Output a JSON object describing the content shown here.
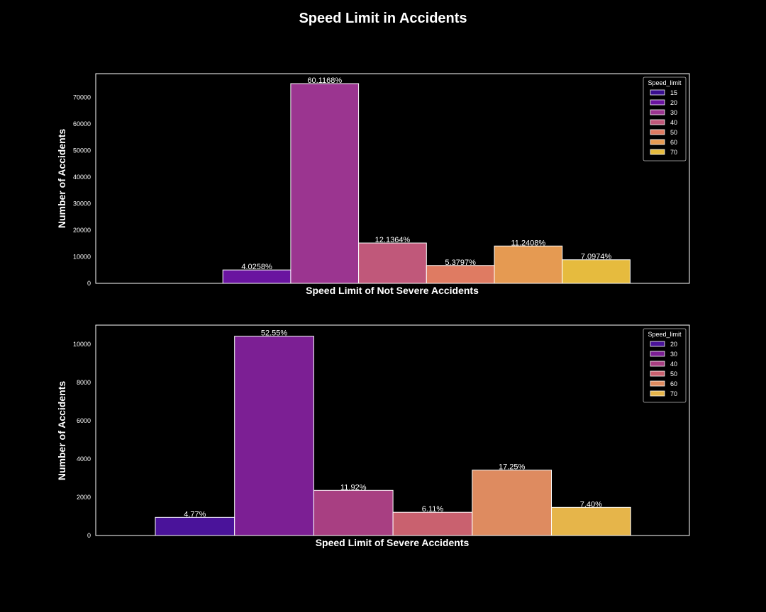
{
  "title": "Speed Limit in Accidents",
  "chart_data": [
    {
      "type": "bar",
      "title": "",
      "xlabel": "Speed Limit of Not Severe Accidents",
      "ylabel": "Number of Accidents",
      "ylim": [
        0,
        79000
      ],
      "yticks": [
        0,
        10000,
        20000,
        30000,
        40000,
        50000,
        60000,
        70000
      ],
      "legend_title": "Speed_limit",
      "legend_position": "top-right",
      "grid": false,
      "categories": [
        "15",
        "20",
        "30",
        "40",
        "50",
        "60",
        "70"
      ],
      "values": [
        1,
        5040,
        75250,
        15200,
        6730,
        14070,
        8880
      ],
      "labels": [
        "",
        "4.0258%",
        "60.1168%",
        "12.1364%",
        "5.3797%",
        "11.2408%",
        "7.0974%"
      ],
      "colors": [
        "#3a0f8f",
        "#6a14a0",
        "#9b3590",
        "#c0587a",
        "#df7b62",
        "#e59a52",
        "#e6bb3e"
      ]
    },
    {
      "type": "bar",
      "title": "",
      "xlabel": "Speed Limit of Severe Accidents",
      "ylabel": "Number of Accidents",
      "ylim": [
        0,
        11000
      ],
      "yticks": [
        0,
        2000,
        4000,
        6000,
        8000,
        10000
      ],
      "legend_title": "Speed_limit",
      "legend_position": "top-right",
      "grid": false,
      "categories": [
        "20",
        "30",
        "40",
        "50",
        "60",
        "70"
      ],
      "values": [
        950,
        10420,
        2360,
        1215,
        3420,
        1470
      ],
      "labels": [
        "4.77%",
        "52.55%",
        "11.92%",
        "6.11%",
        "17.25%",
        "7.40%"
      ],
      "colors": [
        "#4a139a",
        "#7c1f94",
        "#a83f82",
        "#c9616f",
        "#de8b60",
        "#e6b54a"
      ]
    }
  ]
}
